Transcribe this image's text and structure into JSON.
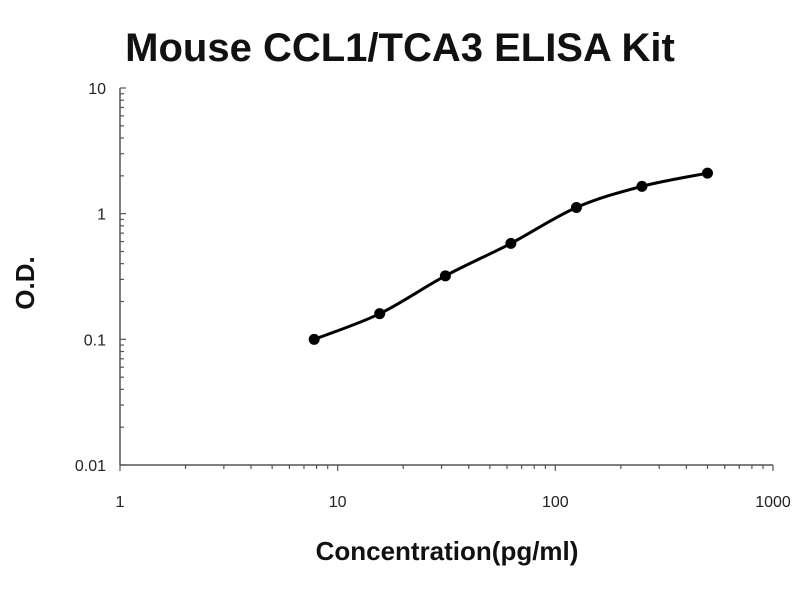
{
  "chart_data": {
    "type": "scatter",
    "title": "Mouse CCL1/TCA3 ELISA Kit",
    "xlabel": "Concentration(pg/ml)",
    "ylabel": "O.D.",
    "x_scale": "log",
    "y_scale": "log",
    "xlim": [
      1,
      1000
    ],
    "ylim": [
      0.01,
      10
    ],
    "x_ticks": [
      "1",
      "10",
      "100",
      "1000"
    ],
    "y_ticks": [
      "0.01",
      "0.1",
      "1",
      "10"
    ],
    "grid": false,
    "legend": "none",
    "point_color": "#000000",
    "curve_color": "#000000",
    "series": [
      {
        "x": [
          7.8,
          15.6,
          31.25,
          62.5,
          125,
          250,
          500
        ],
        "y": [
          0.1,
          0.16,
          0.32,
          0.58,
          1.12,
          1.65,
          2.1
        ]
      }
    ]
  }
}
